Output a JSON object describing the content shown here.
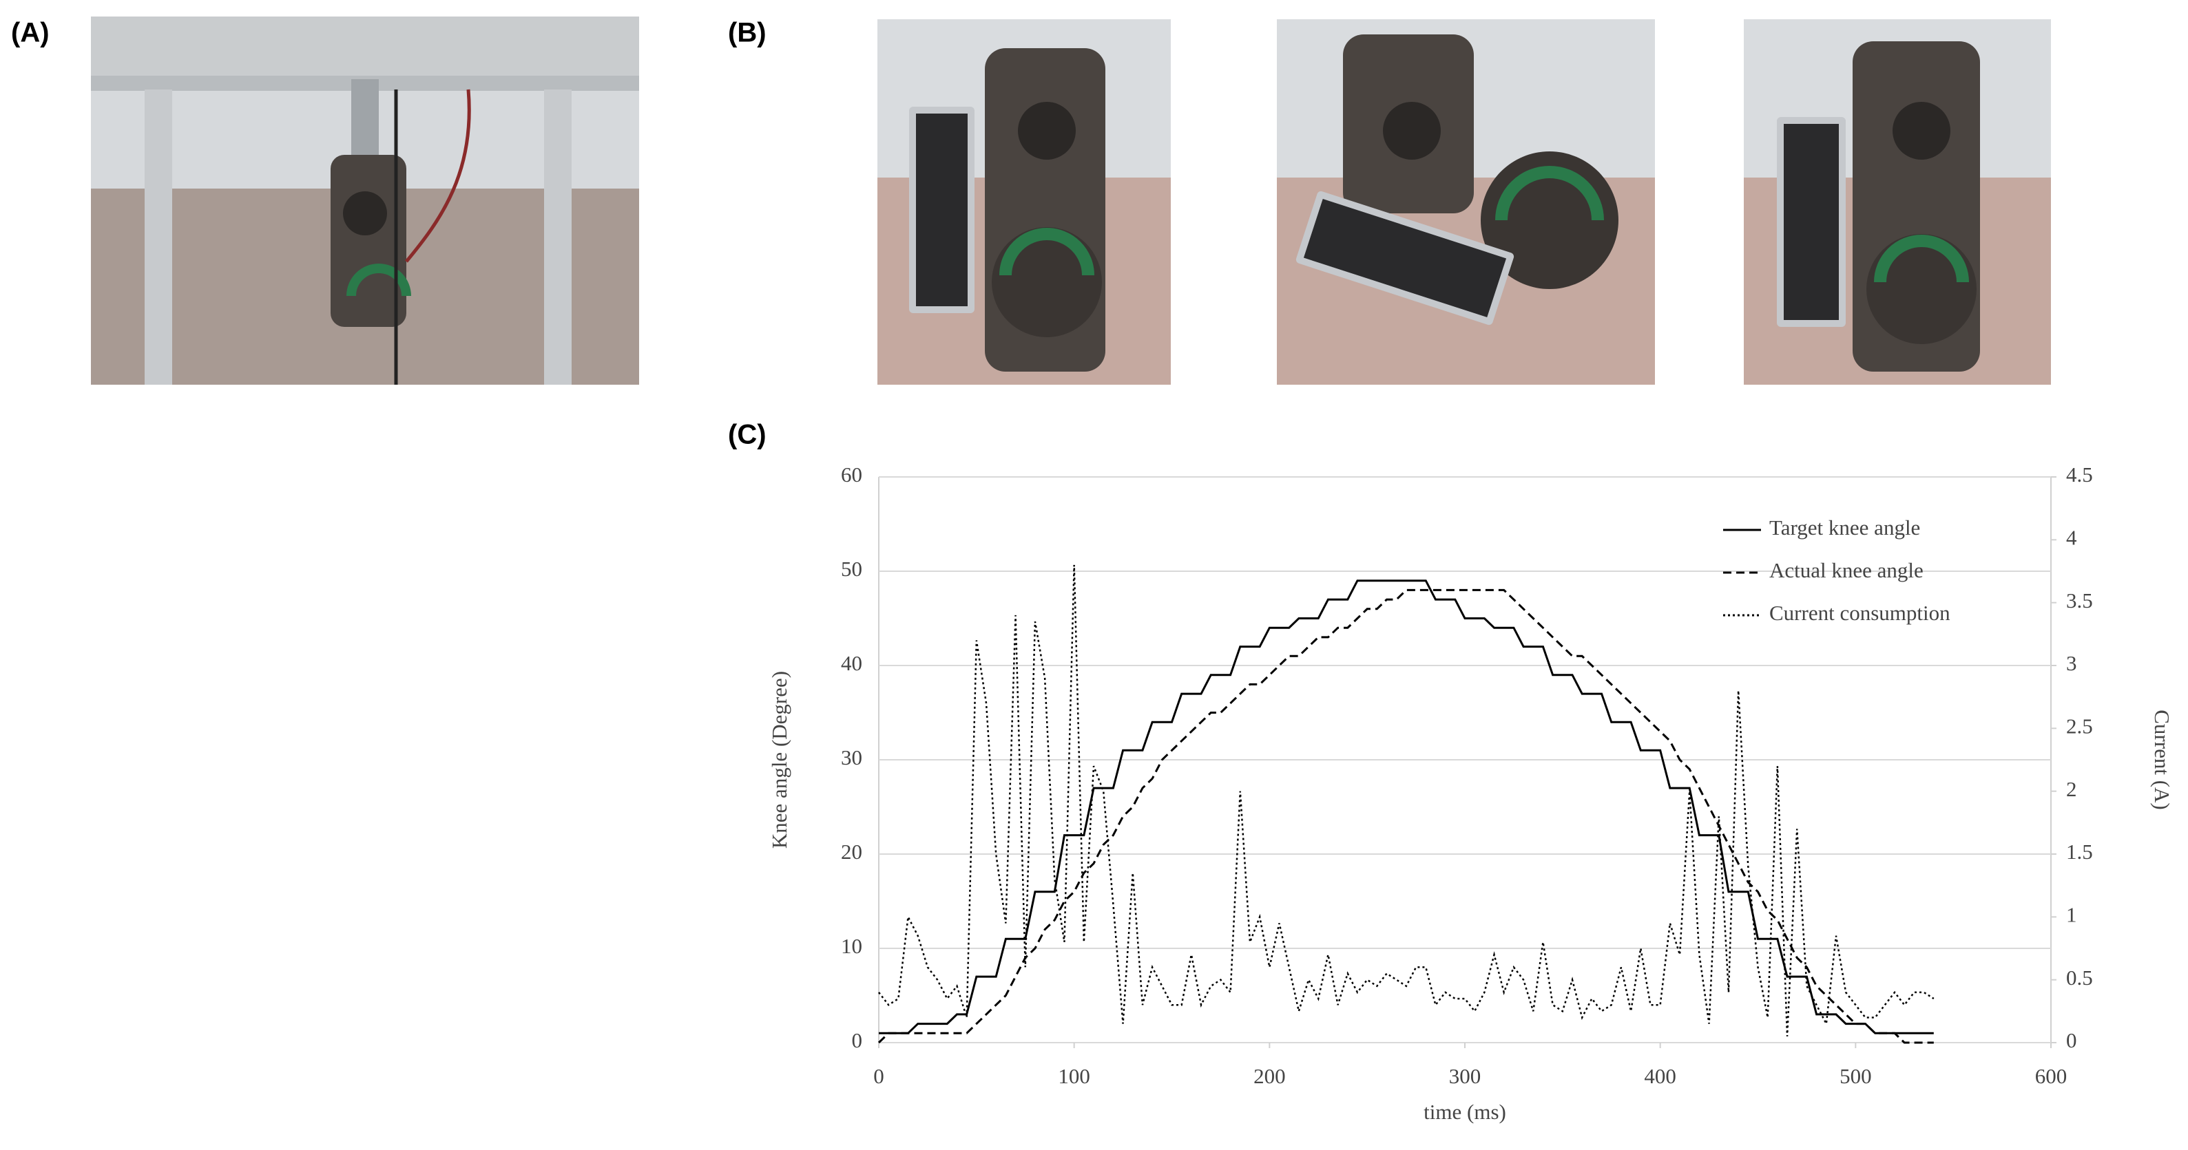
{
  "panel_labels": [
    "(A)",
    "(B)",
    "(C)"
  ],
  "chart_data": {
    "type": "line",
    "xlabel": "time (ms)",
    "ylabel": "Knee angle (Degree)",
    "y2label": "Current (A)",
    "xlim": [
      0,
      600
    ],
    "xticks": [
      0,
      100,
      200,
      300,
      400,
      500,
      600
    ],
    "ylim": [
      0,
      60
    ],
    "yticks": [
      0,
      10,
      20,
      30,
      40,
      50,
      60
    ],
    "y2lim": [
      0,
      4.5
    ],
    "y2ticks": [
      0,
      0.5,
      1,
      1.5,
      2,
      2.5,
      3,
      3.5,
      4,
      4.5
    ],
    "grid": true,
    "legend": "top-right",
    "x": [
      0,
      5,
      10,
      15,
      20,
      25,
      30,
      35,
      40,
      45,
      50,
      55,
      60,
      65,
      70,
      75,
      80,
      85,
      90,
      95,
      100,
      105,
      110,
      115,
      120,
      125,
      130,
      135,
      140,
      145,
      150,
      155,
      160,
      165,
      170,
      175,
      180,
      185,
      190,
      195,
      200,
      205,
      210,
      215,
      220,
      225,
      230,
      235,
      240,
      245,
      250,
      255,
      260,
      265,
      270,
      275,
      280,
      285,
      290,
      295,
      300,
      305,
      310,
      315,
      320,
      325,
      330,
      335,
      340,
      345,
      350,
      355,
      360,
      365,
      370,
      375,
      380,
      385,
      390,
      395,
      400,
      405,
      410,
      415,
      420,
      425,
      430,
      435,
      440,
      445,
      450,
      455,
      460,
      465,
      470,
      475,
      480,
      485,
      490,
      495,
      500,
      505,
      510,
      515,
      520,
      525,
      530,
      535,
      540
    ],
    "series": [
      {
        "name": "Target knee angle",
        "color": "#000000",
        "style": "solid",
        "values": [
          1,
          1,
          1,
          1,
          2,
          2,
          2,
          2,
          3,
          3,
          7,
          7,
          7,
          11,
          11,
          11,
          16,
          16,
          16,
          22,
          22,
          22,
          27,
          27,
          27,
          31,
          31,
          31,
          34,
          34,
          34,
          37,
          37,
          37,
          39,
          39,
          39,
          42,
          42,
          42,
          44,
          44,
          44,
          45,
          45,
          45,
          47,
          47,
          47,
          49,
          49,
          49,
          49,
          49,
          49,
          49,
          49,
          47,
          47,
          47,
          45,
          45,
          45,
          44,
          44,
          44,
          42,
          42,
          42,
          39,
          39,
          39,
          37,
          37,
          37,
          34,
          34,
          34,
          31,
          31,
          31,
          27,
          27,
          27,
          22,
          22,
          22,
          16,
          16,
          16,
          11,
          11,
          11,
          7,
          7,
          7,
          3,
          3,
          3,
          2,
          2,
          2,
          1,
          1,
          1,
          1,
          1,
          1,
          1
        ]
      },
      {
        "name": "Actual knee angle",
        "color": "#000000",
        "style": "dashed",
        "values": [
          0,
          1,
          1,
          1,
          1,
          1,
          1,
          1,
          1,
          1,
          2,
          3,
          4,
          5,
          7,
          9,
          10,
          12,
          13,
          15,
          16,
          18,
          19,
          21,
          22,
          24,
          25,
          27,
          28,
          30,
          31,
          32,
          33,
          34,
          35,
          35,
          36,
          37,
          38,
          38,
          39,
          40,
          41,
          41,
          42,
          43,
          43,
          44,
          44,
          45,
          46,
          46,
          47,
          47,
          48,
          48,
          48,
          48,
          48,
          48,
          48,
          48,
          48,
          48,
          48,
          47,
          46,
          45,
          44,
          43,
          42,
          41,
          41,
          40,
          39,
          38,
          37,
          36,
          35,
          34,
          33,
          32,
          30,
          29,
          27,
          25,
          23,
          21,
          19,
          17,
          16,
          14,
          13,
          11,
          9,
          8,
          6,
          5,
          4,
          3,
          2,
          2,
          1,
          1,
          1,
          0,
          0,
          0,
          0
        ]
      },
      {
        "name": "Current consumption",
        "color": "#000000",
        "style": "dotted",
        "axis": "y2",
        "values": [
          0.4,
          0.3,
          0.35,
          1.0,
          0.85,
          0.6,
          0.5,
          0.35,
          0.45,
          0.2,
          3.2,
          2.7,
          1.5,
          0.95,
          3.4,
          0.6,
          3.35,
          2.9,
          1.3,
          0.8,
          3.8,
          0.8,
          2.2,
          2.0,
          1.1,
          0.15,
          1.35,
          0.3,
          0.6,
          0.45,
          0.3,
          0.3,
          0.7,
          0.3,
          0.45,
          0.5,
          0.4,
          2.0,
          0.8,
          1.0,
          0.6,
          0.95,
          0.6,
          0.25,
          0.5,
          0.35,
          0.7,
          0.3,
          0.55,
          0.4,
          0.5,
          0.45,
          0.55,
          0.5,
          0.45,
          0.6,
          0.6,
          0.3,
          0.4,
          0.35,
          0.35,
          0.25,
          0.4,
          0.7,
          0.4,
          0.6,
          0.5,
          0.25,
          0.8,
          0.3,
          0.25,
          0.5,
          0.2,
          0.35,
          0.25,
          0.3,
          0.6,
          0.25,
          0.75,
          0.3,
          0.3,
          0.95,
          0.7,
          2.0,
          0.7,
          0.15,
          1.8,
          0.4,
          2.8,
          1.4,
          0.6,
          0.2,
          2.2,
          0.05,
          1.7,
          0.45,
          0.3,
          0.15,
          0.85,
          0.4,
          0.3,
          0.2,
          0.2,
          0.3,
          0.4,
          0.3,
          0.4,
          0.4,
          0.35
        ]
      }
    ]
  }
}
